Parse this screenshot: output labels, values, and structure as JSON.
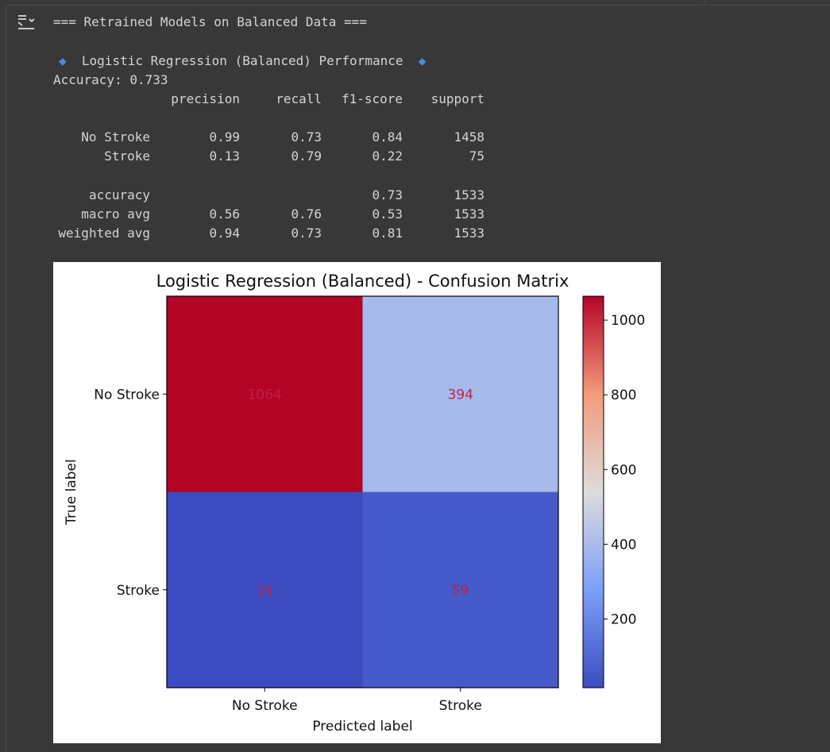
{
  "output": {
    "header": "=== Retrained Models on Balanced Data ===",
    "model_heading": "Logistic Regression (Balanced) Performance",
    "diamond": "◆",
    "accuracy_line": "Accuracy: 0.733"
  },
  "report": {
    "columns": [
      "precision",
      "recall",
      "f1-score",
      "support"
    ],
    "rows": [
      {
        "label": "No Stroke",
        "values": [
          "0.99",
          "0.73",
          "0.84",
          "1458"
        ]
      },
      {
        "label": "Stroke",
        "values": [
          "0.13",
          "0.79",
          "0.22",
          "75"
        ]
      },
      {
        "label": "accuracy",
        "values": [
          "",
          "",
          "0.73",
          "1533"
        ]
      },
      {
        "label": "macro avg",
        "values": [
          "0.56",
          "0.76",
          "0.53",
          "1533"
        ]
      },
      {
        "label": "weighted avg",
        "values": [
          "0.94",
          "0.73",
          "0.81",
          "1533"
        ]
      }
    ]
  },
  "chart_data": {
    "type": "heatmap",
    "title": "Logistic Regression (Balanced) - Confusion Matrix",
    "xlabel": "Predicted label",
    "ylabel": "True label",
    "x_categories": [
      "No Stroke",
      "Stroke"
    ],
    "y_categories": [
      "No Stroke",
      "Stroke"
    ],
    "values": [
      [
        1064,
        394
      ],
      [
        16,
        59
      ]
    ],
    "colormap": "coolwarm",
    "cell_text_color": "#c0204a",
    "colorbar": {
      "range": [
        16,
        1064
      ],
      "ticks": [
        200,
        400,
        600,
        800,
        1000
      ]
    }
  }
}
